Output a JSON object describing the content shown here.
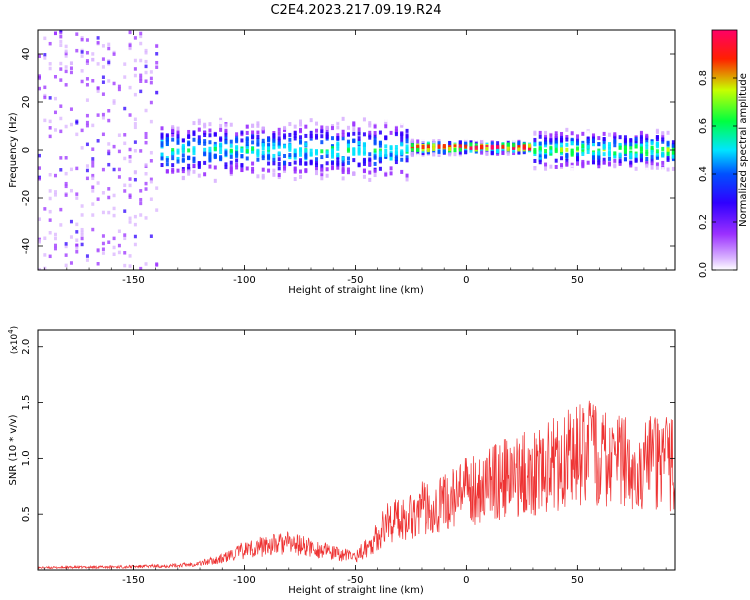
{
  "title": "C2E4.2023.217.09.19.R24",
  "colors": {
    "snr_line": "#ee3333",
    "colormap": [
      "#ffffff",
      "#d9b3ff",
      "#9b30ff",
      "#2f00ff",
      "#0050ff",
      "#00e5ff",
      "#00ff40",
      "#c8ff00",
      "#ff2000",
      "#ff0066"
    ]
  },
  "chart_data": [
    {
      "type": "heatmap",
      "xlabel": "Height of straight line (km)",
      "ylabel": "Frequency (Hz)",
      "xlim": [
        -193,
        94
      ],
      "ylim": [
        -50,
        50
      ],
      "xticks": [
        -150,
        -100,
        -50,
        0,
        50
      ],
      "yticks": [
        -40,
        -20,
        0,
        20,
        40
      ],
      "xtick_labels": [
        "-150",
        "-100",
        "-50",
        "0",
        "50"
      ],
      "ytick_labels": [
        "-40",
        "-20",
        "0",
        "20",
        "40"
      ],
      "colorbar": {
        "label": "Normalized spectral amplitude",
        "range": [
          0,
          1
        ],
        "ticks": [
          0.0,
          0.2,
          0.4,
          0.6,
          0.8
        ],
        "tick_labels": [
          "0.0",
          "0.2",
          "0.4",
          "0.6",
          "0.8"
        ]
      },
      "description_regions": [
        {
          "x_range": [
            -193,
            -140
          ],
          "freq_spread": [
            -50,
            50
          ],
          "amplitude": [
            0.05,
            0.3
          ]
        },
        {
          "x_range": [
            -140,
            -25
          ],
          "freq_spread": [
            -12,
            12
          ],
          "amplitude": [
            0.2,
            0.6
          ]
        },
        {
          "x_range": [
            -25,
            30
          ],
          "freq_spread": [
            -2,
            4
          ],
          "amplitude": [
            0.8,
            1.0
          ]
        },
        {
          "x_range": [
            30,
            94
          ],
          "freq_spread": [
            -8,
            8
          ],
          "amplitude": [
            0.3,
            0.7
          ]
        }
      ]
    },
    {
      "type": "line",
      "xlabel": "Height of straight line (km)",
      "ylabel": "SNR (10 * v/v)",
      "y_multiplier": "(x10",
      "y_multiplier_exp": "4",
      "y_multiplier_close": ")",
      "xlim": [
        -193,
        94
      ],
      "ylim": [
        0,
        2.15
      ],
      "xticks": [
        -150,
        -100,
        -50,
        0,
        50
      ],
      "yticks": [
        0.5,
        1.0,
        1.5,
        2.0
      ],
      "xtick_labels": [
        "-150",
        "-100",
        "-50",
        "0",
        "50"
      ],
      "ytick_labels": [
        "0.5",
        "1.0",
        "1.5",
        "2.0"
      ],
      "series": [
        {
          "x": [
            -193,
            -150,
            -130,
            -120,
            -110,
            -100,
            -90,
            -80,
            -70,
            -60,
            -50,
            -45,
            -40,
            -35,
            -30,
            -25,
            -20,
            -10,
            0,
            10,
            20,
            30,
            40,
            45,
            50,
            55,
            60,
            70,
            80,
            90,
            94
          ],
          "y": [
            0.02,
            0.03,
            0.04,
            0.06,
            0.1,
            0.18,
            0.22,
            0.24,
            0.2,
            0.15,
            0.12,
            0.2,
            0.3,
            0.45,
            0.45,
            0.5,
            0.55,
            0.6,
            0.7,
            0.78,
            0.82,
            0.88,
            0.95,
            1.0,
            1.05,
            1.05,
            1.0,
            0.95,
            0.95,
            0.95,
            0.95
          ]
        }
      ]
    }
  ]
}
